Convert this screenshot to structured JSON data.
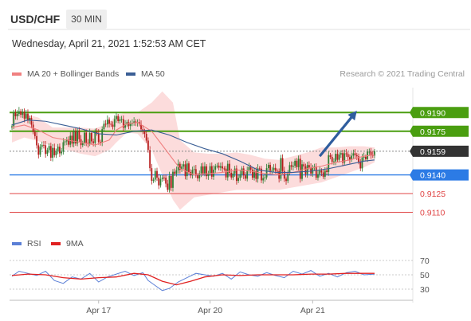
{
  "header": {
    "symbol": "USD/CHF",
    "timeframe": "30 MIN",
    "datetime": "Wednesday, April 21, 2021 1:52:53 AM CET"
  },
  "legend": {
    "ma20_label": "MA 20 + Bollinger Bands",
    "ma50_label": "MA 50",
    "credit": "Research © 2021 Trading Central",
    "rsi_label": "RSI",
    "ma9_label": "9MA"
  },
  "colors": {
    "ma20": "#f08080",
    "band_fill": "#fbd6d6",
    "ma50": "#3a5e95",
    "resistance": "#4a9e10",
    "support": "#2c7be5",
    "pivot_low": "#e04545",
    "last_price": "#333333",
    "candle_up": "#2e7d32",
    "candle_down": "#b71c1c",
    "rsi": "#5b7fd6",
    "rsi_ma": "#e02020"
  },
  "chart_data": [
    {
      "type": "line",
      "title": "",
      "series": [
        {
          "name": "MA 20 + Bollinger Bands",
          "x": [
            1,
            8,
            16,
            24,
            32,
            40,
            48,
            56,
            60,
            66,
            72,
            80,
            88,
            96,
            104,
            112,
            120,
            128,
            136,
            144,
            152,
            160,
            168,
            176,
            184,
            192,
            200,
            206
          ],
          "values": [
            0.9178,
            0.918,
            0.9176,
            0.917,
            0.9168,
            0.9166,
            0.9164,
            0.9168,
            0.9176,
            0.9181,
            0.9182,
            0.9175,
            0.916,
            0.9145,
            0.914,
            0.9141,
            0.9142,
            0.9144,
            0.9143,
            0.9141,
            0.914,
            0.9142,
            0.9145,
            0.9147,
            0.915,
            0.9152,
            0.9155,
            0.9156
          ]
        },
        {
          "name": "MA 50",
          "x": [
            1,
            10,
            20,
            30,
            40,
            50,
            60,
            70,
            80,
            90,
            100,
            110,
            120,
            130,
            140,
            150,
            160,
            170,
            180,
            190,
            200,
            206
          ],
          "values": [
            0.918,
            0.9184,
            0.9183,
            0.918,
            0.9177,
            0.9173,
            0.9172,
            0.9175,
            0.9176,
            0.9172,
            0.9166,
            0.9161,
            0.9157,
            0.9151,
            0.9144,
            0.9142,
            0.9142,
            0.9143,
            0.9145,
            0.9148,
            0.9151,
            0.9152
          ]
        }
      ],
      "bands": {
        "x": [
          1,
          8,
          16,
          24,
          32,
          40,
          48,
          56,
          60,
          66,
          72,
          80,
          86,
          92,
          96,
          104,
          112,
          120,
          128,
          136,
          144,
          152,
          160,
          168,
          176,
          184,
          192,
          200,
          206
        ],
        "upper": [
          0.919,
          0.9189,
          0.9186,
          0.9178,
          0.9178,
          0.9178,
          0.9177,
          0.9182,
          0.9188,
          0.919,
          0.919,
          0.9198,
          0.9207,
          0.9198,
          0.9168,
          0.9158,
          0.9157,
          0.9157,
          0.9158,
          0.9156,
          0.9153,
          0.9152,
          0.9155,
          0.9158,
          0.9162,
          0.9162,
          0.9163,
          0.9163,
          0.9162
        ],
        "lower": [
          0.9166,
          0.917,
          0.9167,
          0.9163,
          0.916,
          0.9157,
          0.9155,
          0.916,
          0.9166,
          0.9174,
          0.9173,
          0.916,
          0.914,
          0.912,
          0.9112,
          0.9122,
          0.9124,
          0.9126,
          0.9128,
          0.9128,
          0.9128,
          0.9128,
          0.913,
          0.9132,
          0.9134,
          0.9138,
          0.9142,
          0.9146,
          0.915
        ]
      },
      "candles": {
        "x_range": [
          1,
          206
        ],
        "close": [
          0.9179,
          0.919,
          0.9187,
          0.91889,
          0.91911,
          0.91882,
          0.91907,
          0.91852,
          0.91891,
          0.91836,
          0.91857,
          0.91803,
          0.91744,
          0.91711,
          0.91637,
          0.91562,
          0.91625,
          0.91641,
          0.91638,
          0.91568,
          0.91599,
          0.91632,
          0.91538,
          0.91617,
          0.91558,
          0.91593,
          0.91626,
          0.91573,
          0.91585,
          0.91662,
          0.91669,
          0.91683,
          0.91642,
          0.91714,
          0.91651,
          0.91753,
          0.91652,
          0.91753,
          0.91686,
          0.91639,
          0.91656,
          0.91739,
          0.91657,
          0.91649,
          0.91736,
          0.91669,
          0.91655,
          0.91745,
          0.91733,
          0.91664,
          0.91661,
          0.91767,
          0.9181,
          0.91805,
          0.91843,
          0.9181,
          0.91803,
          0.91786,
          0.91847,
          0.91871,
          0.91832,
          0.91845,
          0.91847,
          0.91778,
          0.91806,
          0.91823,
          0.91792,
          0.91809,
          0.91816,
          0.91829,
          0.91818,
          0.91823,
          0.91807,
          0.91766,
          0.91752,
          0.91729,
          0.91675,
          0.916,
          0.91454,
          0.91353,
          0.91362,
          0.91431,
          0.91378,
          0.91316,
          0.91366,
          0.91379,
          0.91378,
          0.9133,
          0.9128,
          0.91391,
          0.91296,
          0.91425,
          0.91409,
          0.91437,
          0.91489,
          0.91441,
          0.91467,
          0.91485,
          0.9139,
          0.91492,
          0.91423,
          0.91396,
          0.9144,
          0.91446,
          0.91396,
          0.91372,
          0.91413,
          0.91468,
          0.91411,
          0.91469,
          0.9139,
          0.91411,
          0.9147,
          0.91386,
          0.91442,
          0.9147,
          0.91474,
          0.91458,
          0.91469,
          0.91452,
          0.9145,
          0.9138,
          0.91489,
          0.91416,
          0.91379,
          0.91411,
          0.91451,
          0.91352,
          0.91376,
          0.91405,
          0.91452,
          0.91396,
          0.9137,
          0.91437,
          0.91463,
          0.91442,
          0.91377,
          0.91432,
          0.91368,
          0.91452,
          0.9145,
          0.91356,
          0.91374,
          0.9138,
          0.91454,
          0.9148,
          0.91432,
          0.91439,
          0.91456,
          0.91433,
          0.9143,
          0.91369,
          0.91535,
          0.91431,
          0.9137,
          0.91351,
          0.91418,
          0.91478,
          0.91465,
          0.91473,
          0.91513,
          0.91462,
          0.91529,
          0.91368,
          0.91485,
          0.91468,
          0.91407,
          0.91479,
          0.91459,
          0.91411,
          0.91463,
          0.91467,
          0.91377,
          0.91406,
          0.91435,
          0.9142,
          0.91385,
          0.91435,
          0.91423,
          0.91558,
          0.91544,
          0.91505,
          0.91508,
          0.91569,
          0.91521,
          0.91563,
          0.91575,
          0.91499,
          0.91573,
          0.91567,
          0.91543,
          0.91521,
          0.91554,
          0.91573,
          0.91559,
          0.91549,
          0.91503,
          0.91452,
          0.91539,
          0.91545,
          0.91526,
          0.91586,
          0.91586,
          0.91559,
          0.91554,
          0.9159
        ]
      },
      "xlabels": [
        "Apr 17",
        "Apr 20",
        "Apr 21"
      ],
      "xlabel_positions": [
        50,
        113,
        171
      ],
      "levels": [
        {
          "value": 0.919,
          "label": "0.9190",
          "kind": "resistance"
        },
        {
          "value": 0.9175,
          "label": "0.9175",
          "kind": "resistance"
        },
        {
          "value": 0.9159,
          "label": "0.9159",
          "kind": "last_price"
        },
        {
          "value": 0.914,
          "label": "0.9140",
          "kind": "support"
        },
        {
          "value": 0.9125,
          "label": "0.9125",
          "kind": "pivot"
        },
        {
          "value": 0.911,
          "label": "0.9110",
          "kind": "pivot"
        }
      ],
      "projection": {
        "from": {
          "x": 175,
          "y": 0.9155
        },
        "to": {
          "x": 194,
          "y": 0.9188
        }
      },
      "y_range": [
        0.9095,
        0.921
      ]
    },
    {
      "type": "line",
      "title": "",
      "series": [
        {
          "name": "RSI",
          "x": [
            1,
            5,
            10,
            15,
            20,
            25,
            30,
            35,
            40,
            45,
            50,
            55,
            60,
            65,
            70,
            75,
            78,
            82,
            86,
            90,
            95,
            100,
            105,
            110,
            115,
            120,
            125,
            130,
            135,
            140,
            145,
            150,
            155,
            160,
            165,
            170,
            175,
            180,
            185,
            190,
            195,
            200,
            206
          ],
          "values": [
            48,
            55,
            52,
            49,
            55,
            42,
            38,
            47,
            44,
            52,
            40,
            47,
            51,
            55,
            49,
            53,
            42,
            35,
            28,
            31,
            40,
            46,
            52,
            50,
            48,
            52,
            44,
            54,
            50,
            48,
            53,
            49,
            46,
            55,
            51,
            56,
            48,
            52,
            47,
            53,
            55,
            50,
            51
          ]
        },
        {
          "name": "9MA",
          "x": [
            1,
            10,
            20,
            30,
            40,
            50,
            60,
            70,
            78,
            86,
            94,
            102,
            110,
            120,
            130,
            140,
            150,
            160,
            170,
            180,
            190,
            200,
            206
          ],
          "values": [
            49,
            51,
            50,
            46,
            44,
            46,
            47,
            52,
            50,
            41,
            36,
            41,
            47,
            50,
            49,
            50,
            50,
            50,
            51,
            51,
            52,
            52,
            52
          ]
        }
      ],
      "yticks": [
        30,
        50,
        70
      ],
      "ylim": [
        20,
        80
      ]
    }
  ]
}
